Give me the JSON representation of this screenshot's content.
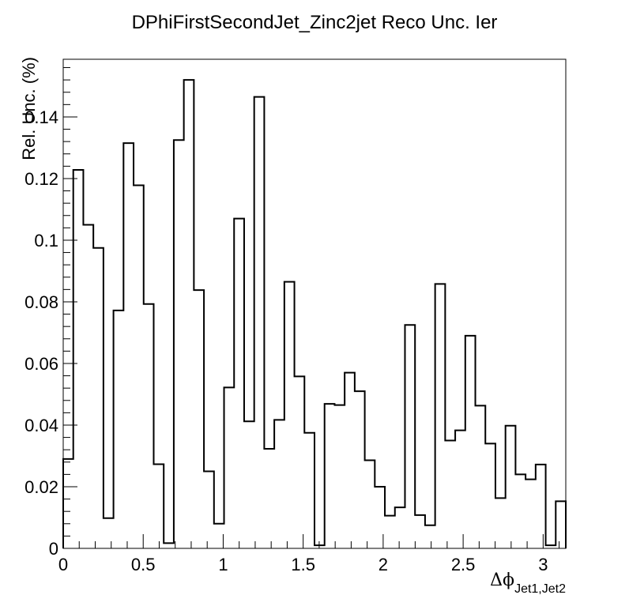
{
  "chart_data": {
    "type": "histogram-step",
    "title": "DPhiFirstSecondJet_Zinc2jet Reco Unc. Ier",
    "xlabel_main": "Δϕ",
    "xlabel_sub": "Jet1,Jet2",
    "ylabel": "Rel. Unc. (%)",
    "xlim": [
      0,
      3.1416
    ],
    "ylim": [
      0,
      0.1587
    ],
    "x_tick_labels": [
      "0",
      "0.5",
      "1",
      "1.5",
      "2",
      "2.5",
      "3"
    ],
    "x_tick_values": [
      0,
      0.5,
      1,
      1.5,
      2,
      2.5,
      3
    ],
    "y_tick_labels": [
      "0",
      "0.02",
      "0.04",
      "0.06",
      "0.08",
      "0.1",
      "0.12",
      "0.14"
    ],
    "y_tick_values": [
      0,
      0.02,
      0.04,
      0.06,
      0.08,
      0.1,
      0.12,
      0.14
    ],
    "bin_edges_start": 0,
    "bin_edges_end": 3.1416,
    "values": [
      0.029,
      0.1228,
      0.105,
      0.0975,
      0.0098,
      0.0772,
      0.1315,
      0.1178,
      0.0793,
      0.0273,
      0.0017,
      0.1325,
      0.152,
      0.0838,
      0.025,
      0.008,
      0.0522,
      0.107,
      0.0412,
      0.1465,
      0.0323,
      0.0417,
      0.0865,
      0.0558,
      0.0375,
      0.001,
      0.0469,
      0.0465,
      0.057,
      0.051,
      0.0286,
      0.02,
      0.0106,
      0.0133,
      0.0725,
      0.0108,
      0.0075,
      0.0858,
      0.035,
      0.0383,
      0.069,
      0.0463,
      0.034,
      0.0163,
      0.0398,
      0.024,
      0.0224,
      0.0272,
      0.001,
      0.0153
    ],
    "line_color": "#000000",
    "grid": false,
    "legend": "none"
  }
}
